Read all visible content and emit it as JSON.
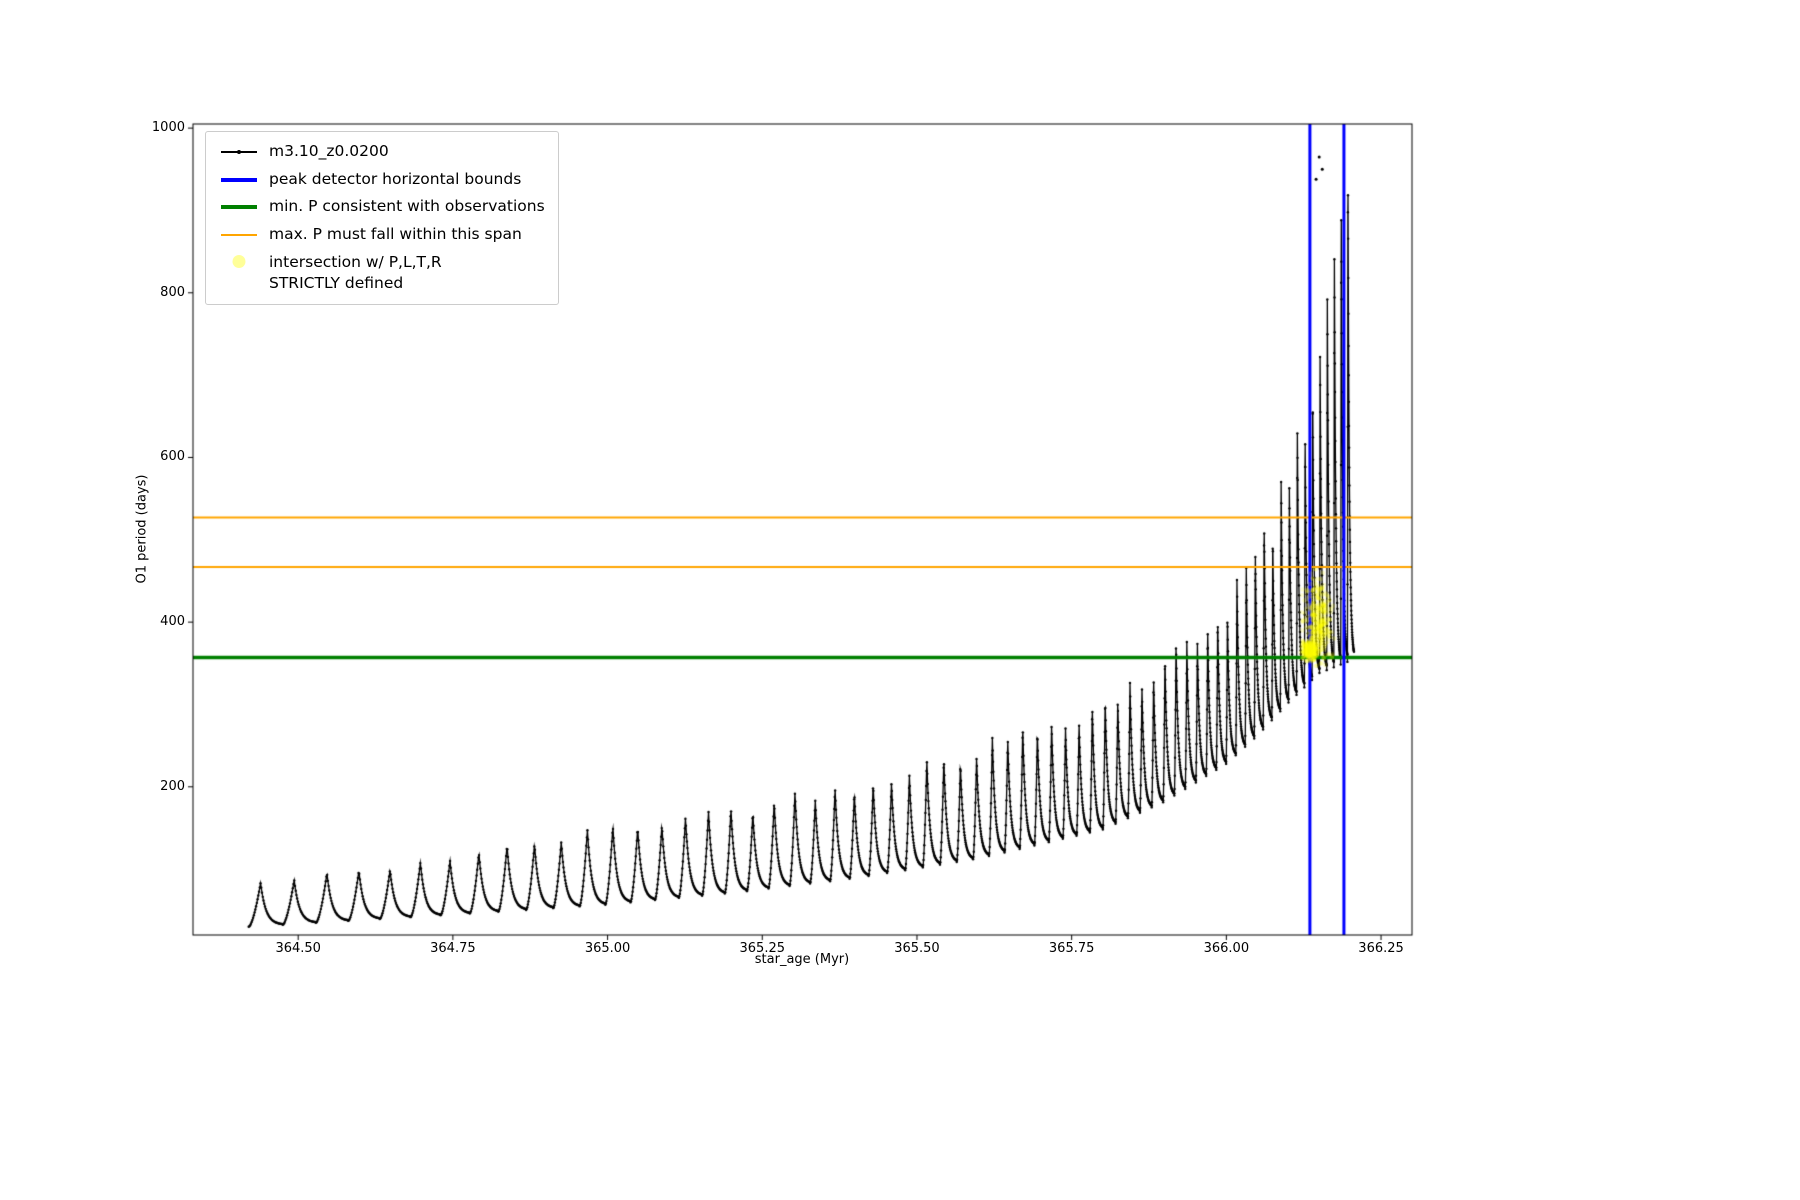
{
  "window": {
    "background": "#ffffff",
    "plot_border_color": "#000000"
  },
  "chart_data": {
    "type": "line",
    "title": "",
    "xlabel": "star_age (Myr)",
    "ylabel": "O1 period (days)",
    "xlim": [
      364.33,
      366.3
    ],
    "ylim": [
      20,
      1005
    ],
    "xticks": [
      364.5,
      364.75,
      365.0,
      365.25,
      365.5,
      365.75,
      366.0,
      366.25
    ],
    "yticks": [
      200,
      400,
      600,
      800,
      1000
    ],
    "grid": false,
    "legend_position": "upper-left",
    "series": [
      {
        "name": "m3.10_z0.0200",
        "style": "sawtooth-pulse-train",
        "color": "#000000",
        "marker": ".",
        "x_start": 364.42,
        "x_end": 366.21,
        "tooth_interval_start": 0.055,
        "tooth_interval_ratio": 0.975,
        "peak_envelope": [
          [
            364.42,
            80
          ],
          [
            364.6,
            96
          ],
          [
            364.8,
            118
          ],
          [
            365.0,
            146
          ],
          [
            365.2,
            170
          ],
          [
            365.4,
            200
          ],
          [
            365.6,
            243
          ],
          [
            365.8,
            298
          ],
          [
            365.9,
            345
          ],
          [
            366.0,
            420
          ],
          [
            366.05,
            478
          ],
          [
            366.1,
            560
          ],
          [
            366.13,
            660
          ],
          [
            366.16,
            790
          ],
          [
            366.19,
            920
          ],
          [
            366.21,
            912
          ]
        ],
        "trough_envelope": [
          [
            364.42,
            30
          ],
          [
            364.6,
            38
          ],
          [
            364.8,
            47
          ],
          [
            365.0,
            57
          ],
          [
            365.2,
            71
          ],
          [
            365.4,
            89
          ],
          [
            365.6,
            113
          ],
          [
            365.8,
            148
          ],
          [
            365.9,
            182
          ],
          [
            366.0,
            228
          ],
          [
            366.05,
            262
          ],
          [
            366.1,
            302
          ],
          [
            366.15,
            338
          ],
          [
            366.21,
            356
          ]
        ],
        "outlier_points": [
          [
            366.15,
            965
          ],
          [
            366.155,
            950
          ],
          [
            366.145,
            938
          ]
        ]
      }
    ],
    "vlines": [
      {
        "x": 366.135,
        "color": "#0000ff",
        "linewidth": 3,
        "label": "peak detector horizontal bounds"
      },
      {
        "x": 366.19,
        "color": "#0000ff",
        "linewidth": 3,
        "label": "peak detector horizontal bounds"
      }
    ],
    "hlines": [
      {
        "y": 357,
        "color": "#008000",
        "linewidth": 3.5,
        "label": "min. P consistent with observations"
      },
      {
        "y": 467,
        "color": "#ffa500",
        "linewidth": 2,
        "label": "max. P must fall within this span"
      },
      {
        "y": 527,
        "color": "#ffa500",
        "linewidth": 2,
        "label": "max. P must fall within this span"
      }
    ],
    "scatter": {
      "name": "intersection w/ P,L,T,R STRICTLY defined",
      "color": "#ffff00",
      "alpha": 0.18,
      "marker_radius": 2.3,
      "x_range": [
        366.103,
        366.2
      ],
      "y_range": [
        343,
        468
      ],
      "clusters": [
        {
          "center": [
            366.148,
            400
          ],
          "sigma": [
            0.02,
            55
          ],
          "count": 430
        },
        {
          "center": [
            366.135,
            365
          ],
          "sigma": [
            0.013,
            12
          ],
          "count": 260
        }
      ]
    }
  },
  "legend": {
    "background": "#ffffff",
    "border_color": "#cccccc",
    "entries": [
      {
        "label": "m3.10_z0.0200",
        "color": "#000000",
        "sample": "line-with-dot"
      },
      {
        "label": "peak detector horizontal bounds",
        "color": "#0000ff",
        "sample": "thick-line"
      },
      {
        "label": "min. P consistent with observations",
        "color": "#008000",
        "sample": "thick-line"
      },
      {
        "label": "max. P must fall within this span",
        "color": "#ffa500",
        "sample": "line"
      },
      {
        "label": "intersection w/ P,L,T,R\nSTRICTLY defined",
        "color": "#ffff99",
        "sample": "round-marker"
      }
    ]
  }
}
